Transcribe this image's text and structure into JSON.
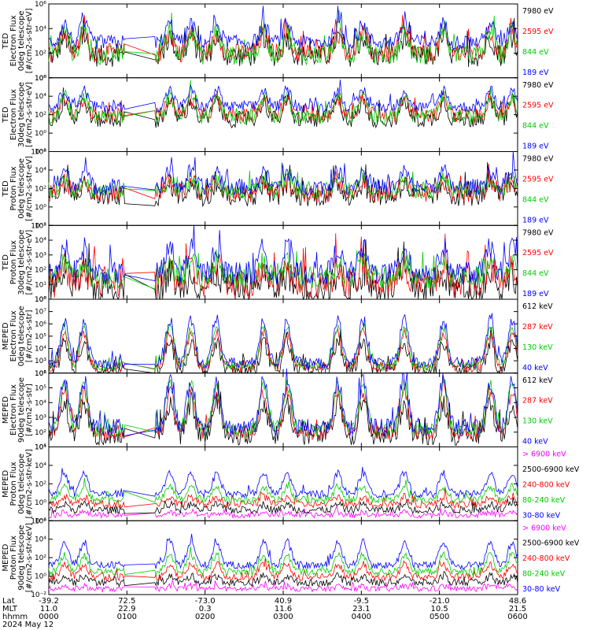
{
  "chart_data": {
    "type": "line",
    "date_label": "2024 May 12",
    "footer": {
      "row_labels": [
        "Lat",
        "MLT",
        "hhmm"
      ],
      "columns": [
        {
          "lat": "-39.2",
          "mlt": "11.0",
          "hhmm": "0000"
        },
        {
          "lat": "72.5",
          "mlt": "22.9",
          "hhmm": "0100"
        },
        {
          "lat": "-73.0",
          "mlt": "0.3",
          "hhmm": "0200"
        },
        {
          "lat": "40.9",
          "mlt": "11.6",
          "hhmm": "0300"
        },
        {
          "lat": "-9.5",
          "mlt": "23.1",
          "hhmm": "0400"
        },
        {
          "lat": "-21.0",
          "mlt": "10.5",
          "hhmm": "0500"
        },
        {
          "lat": "48.6",
          "mlt": "21.5",
          "hhmm": "0600"
        }
      ]
    },
    "panels": [
      {
        "ylabel": [
          "TED",
          "Electron Flux",
          "0deg telescope",
          "[#/cm2-s-str-eV]"
        ],
        "yscale": "log",
        "ylim": [
          1,
          1000000
        ],
        "yticks": [
          {
            "v": 1,
            "t": "10⁰"
          },
          {
            "v": 100,
            "t": "10²"
          },
          {
            "v": 10000,
            "t": "10⁴"
          },
          {
            "v": 1000000,
            "t": "10⁶"
          }
        ],
        "series": [
          {
            "name": "7980 eV",
            "color": "#000000",
            "base": 60,
            "peak": 2000,
            "noise": 0.9
          },
          {
            "name": "2595 eV",
            "color": "#ff0000",
            "base": 100,
            "peak": 4000,
            "noise": 0.8
          },
          {
            "name": "844 eV",
            "color": "#00cc00",
            "base": 70,
            "peak": 8000,
            "noise": 0.8
          },
          {
            "name": "189 eV",
            "color": "#0000ff",
            "base": 800,
            "peak": 25000,
            "noise": 0.6
          }
        ]
      },
      {
        "ylabel": [
          "TED",
          "Electron Flux",
          "30deg telescope",
          "[#/cm2-s-str-eV]"
        ],
        "yscale": "log",
        "ylim": [
          0.01,
          1000000
        ],
        "yticks": [
          {
            "v": 0.01,
            "t": "10⁻²"
          },
          {
            "v": 1,
            "t": "10⁰"
          },
          {
            "v": 100,
            "t": "10²"
          },
          {
            "v": 10000,
            "t": "10⁴"
          },
          {
            "v": 1000000,
            "t": "10⁶"
          }
        ],
        "series": [
          {
            "name": "7980 eV",
            "color": "#000000",
            "base": 30,
            "peak": 3000,
            "noise": 0.9
          },
          {
            "name": "2595 eV",
            "color": "#ff0000",
            "base": 80,
            "peak": 6000,
            "noise": 0.8
          },
          {
            "name": "844 eV",
            "color": "#00cc00",
            "base": 60,
            "peak": 10000,
            "noise": 0.8
          },
          {
            "name": "189 eV",
            "color": "#0000ff",
            "base": 700,
            "peak": 50000,
            "noise": 0.6
          }
        ]
      },
      {
        "ylabel": [
          "TED",
          "Proton Flux",
          "0deg telescope",
          "[#/cm2-s-str-eV]"
        ],
        "yscale": "log",
        "ylim": [
          0.01,
          1000000
        ],
        "yticks": [
          {
            "v": 0.01,
            "t": "10⁻²"
          },
          {
            "v": 1,
            "t": "10⁰"
          },
          {
            "v": 100,
            "t": "10²"
          },
          {
            "v": 10000,
            "t": "10⁴"
          },
          {
            "v": 1000000,
            "t": "10⁶"
          }
        ],
        "series": [
          {
            "name": "7980 eV",
            "color": "#000000",
            "base": 15,
            "peak": 300,
            "noise": 1.1
          },
          {
            "name": "2595 eV",
            "color": "#ff0000",
            "base": 30,
            "peak": 600,
            "noise": 1.0
          },
          {
            "name": "844 eV",
            "color": "#00cc00",
            "base": 60,
            "peak": 1000,
            "noise": 0.9
          },
          {
            "name": "189 eV",
            "color": "#0000ff",
            "base": 150,
            "peak": 8000,
            "noise": 0.9
          }
        ]
      },
      {
        "ylabel": [
          "TED",
          "Proton Flux",
          "30deg telescope",
          "[#/cm2-s-str-eV]"
        ],
        "yscale": "log",
        "ylim": [
          1,
          100000
        ],
        "yticks": [
          {
            "v": 1,
            "t": "10⁰"
          },
          {
            "v": 10,
            "t": "10¹"
          },
          {
            "v": 100,
            "t": "10²"
          },
          {
            "v": 1000,
            "t": "10³"
          },
          {
            "v": 10000,
            "t": "10⁴"
          },
          {
            "v": 100000,
            "t": "10⁵"
          }
        ],
        "series": [
          {
            "name": "7980 eV",
            "color": "#000000",
            "base": 6,
            "peak": 60,
            "noise": 1.1
          },
          {
            "name": "2595 eV",
            "color": "#ff0000",
            "base": 12,
            "peak": 150,
            "noise": 1.0
          },
          {
            "name": "844 eV",
            "color": "#00cc00",
            "base": 30,
            "peak": 400,
            "noise": 0.8
          },
          {
            "name": "189 eV",
            "color": "#0000ff",
            "base": 60,
            "peak": 3000,
            "noise": 0.8
          }
        ]
      },
      {
        "ylabel": [
          "MEPED",
          "Electron Flux",
          "0deg telescope",
          "[#/cm2-s-str]"
        ],
        "yscale": "log",
        "ylim": [
          100,
          100000000
        ],
        "yticks": [
          {
            "v": 100,
            "t": "10²"
          },
          {
            "v": 1000,
            "t": "10³"
          },
          {
            "v": 10000,
            "t": "10⁴"
          },
          {
            "v": 100000,
            "t": "10⁵"
          },
          {
            "v": 1000000,
            "t": "10⁶"
          },
          {
            "v": 10000000,
            "t": "10⁷"
          },
          {
            "v": 100000000,
            "t": "10⁸"
          }
        ],
        "series": [
          {
            "name": "612 keV",
            "color": "#000000",
            "base": 150,
            "peak": 30000,
            "noise": 0.6
          },
          {
            "name": "287 keV",
            "color": "#ff0000",
            "base": 300,
            "peak": 200000,
            "noise": 0.4
          },
          {
            "name": "130 keV",
            "color": "#00cc00",
            "base": 400,
            "peak": 600000,
            "noise": 0.4
          },
          {
            "name": "40 keV",
            "color": "#0000ff",
            "base": 600,
            "peak": 2000000,
            "noise": 0.5
          }
        ]
      },
      {
        "ylabel": [
          "MEPED",
          "Electron Flux",
          "90deg telescope",
          "[#/cm2-s-str]"
        ],
        "yscale": "log",
        "ylim": [
          10,
          1000000
        ],
        "yticks": [
          {
            "v": 10,
            "t": "10¹"
          },
          {
            "v": 100,
            "t": "10²"
          },
          {
            "v": 1000,
            "t": "10³"
          },
          {
            "v": 10000,
            "t": "10⁴"
          },
          {
            "v": 100000,
            "t": "10⁵"
          },
          {
            "v": 1000000,
            "t": "10⁶"
          }
        ],
        "series": [
          {
            "name": "612 keV",
            "color": "#000000",
            "base": 60,
            "peak": 10000,
            "noise": 0.7
          },
          {
            "name": "287 keV",
            "color": "#ff0000",
            "base": 100,
            "peak": 60000,
            "noise": 0.5
          },
          {
            "name": "130 keV",
            "color": "#00cc00",
            "base": 150,
            "peak": 150000,
            "noise": 0.5
          },
          {
            "name": "40 keV",
            "color": "#0000ff",
            "base": 200,
            "peak": 300000,
            "noise": 0.6
          }
        ]
      },
      {
        "ylabel": [
          "MEPED",
          "Proton Flux",
          "0deg telescope",
          "[#/cm2-s-str-keV]"
        ],
        "yscale": "log",
        "ylim": [
          0.01,
          1000000
        ],
        "yticks": [
          {
            "v": 0.01,
            "t": "10⁻²"
          },
          {
            "v": 1,
            "t": "10⁰"
          },
          {
            "v": 100,
            "t": "10²"
          },
          {
            "v": 10000,
            "t": "10⁴"
          },
          {
            "v": 1000000,
            "t": "10⁶"
          }
        ],
        "series": [
          {
            "name": "> 6900 keV",
            "color": "#ff00ff",
            "base": 0.04,
            "peak": 0.08,
            "noise": 0.3
          },
          {
            "name": "2500-6900 keV",
            "color": "#000000",
            "base": 0.15,
            "peak": 0.6,
            "noise": 0.4
          },
          {
            "name": "240-800 keV",
            "color": "#ff0000",
            "base": 0.6,
            "peak": 4,
            "noise": 0.4
          },
          {
            "name": "80-240 keV",
            "color": "#00cc00",
            "base": 2,
            "peak": 50,
            "noise": 0.4
          },
          {
            "name": "30-80 keV",
            "color": "#0000ff",
            "base": 8,
            "peak": 1500,
            "noise": 0.4
          }
        ]
      },
      {
        "ylabel": [
          "MEPED",
          "Proton Flux",
          "90deg telescope",
          "[#/cm2-s-str-keV]"
        ],
        "yscale": "log",
        "ylim": [
          0.01,
          1000000
        ],
        "yticks": [
          {
            "v": 0.01,
            "t": "10⁻²"
          },
          {
            "v": 1,
            "t": "10⁰"
          },
          {
            "v": 100,
            "t": "10²"
          },
          {
            "v": 10000,
            "t": "10⁴"
          },
          {
            "v": 1000000,
            "t": "10⁶"
          }
        ],
        "series": [
          {
            "name": "> 6900 keV",
            "color": "#ff00ff",
            "base": 0.04,
            "peak": 0.08,
            "noise": 0.3
          },
          {
            "name": "2500-6900 keV",
            "color": "#000000",
            "base": 0.2,
            "peak": 1,
            "noise": 0.4
          },
          {
            "name": "240-800 keV",
            "color": "#ff0000",
            "base": 0.8,
            "peak": 20,
            "noise": 0.4
          },
          {
            "name": "80-240 keV",
            "color": "#00cc00",
            "base": 3,
            "peak": 200,
            "noise": 0.4
          },
          {
            "name": "30-80 keV",
            "color": "#0000ff",
            "base": 15,
            "peak": 5000,
            "noise": 0.4
          }
        ]
      }
    ]
  }
}
